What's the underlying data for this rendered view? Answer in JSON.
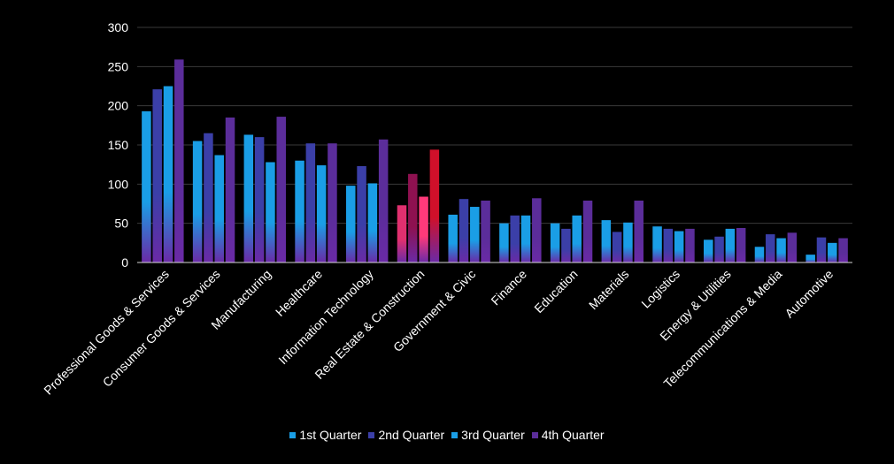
{
  "chart_data": {
    "type": "bar",
    "categories": [
      "Professional Goods & Services",
      "Consumer Goods & Services",
      "Manufacturing",
      "Healthcare",
      "Information Technology",
      "Real Estate & Construction",
      "Government & Civic",
      "Finance",
      "Education",
      "Materials",
      "Logistics",
      "Energy & Utilities",
      "Telecommunications & Media",
      "Automotive"
    ],
    "series": [
      {
        "name": "1st Quarter",
        "color": "#1a9ee6",
        "values": [
          193,
          155,
          163,
          130,
          98,
          73,
          61,
          50,
          50,
          54,
          46,
          29,
          20,
          10
        ]
      },
      {
        "name": "2nd Quarter",
        "color": "#3b3fa8",
        "values": [
          221,
          165,
          160,
          152,
          123,
          113,
          81,
          60,
          43,
          39,
          43,
          33,
          36,
          32
        ]
      },
      {
        "name": "3rd Quarter",
        "color": "#1a9ee6",
        "values": [
          225,
          137,
          128,
          124,
          101,
          84,
          71,
          60,
          60,
          51,
          40,
          43,
          31,
          25
        ]
      },
      {
        "name": "4th Quarter",
        "color": "#5b2d9a",
        "values": [
          259,
          185,
          186,
          152,
          157,
          144,
          79,
          82,
          79,
          79,
          43,
          44,
          38,
          31
        ]
      }
    ],
    "highlight_category": "Real Estate & Construction",
    "highlight_colors": [
      "#e0306f",
      "#8e1150",
      "#ff3a7a",
      "#d0102a"
    ],
    "ylim": [
      0,
      300
    ],
    "yticks": [
      0,
      50,
      100,
      150,
      200,
      250,
      300
    ],
    "grid": true,
    "legend_position": "bottom",
    "title": "",
    "xlabel": "",
    "ylabel": ""
  }
}
